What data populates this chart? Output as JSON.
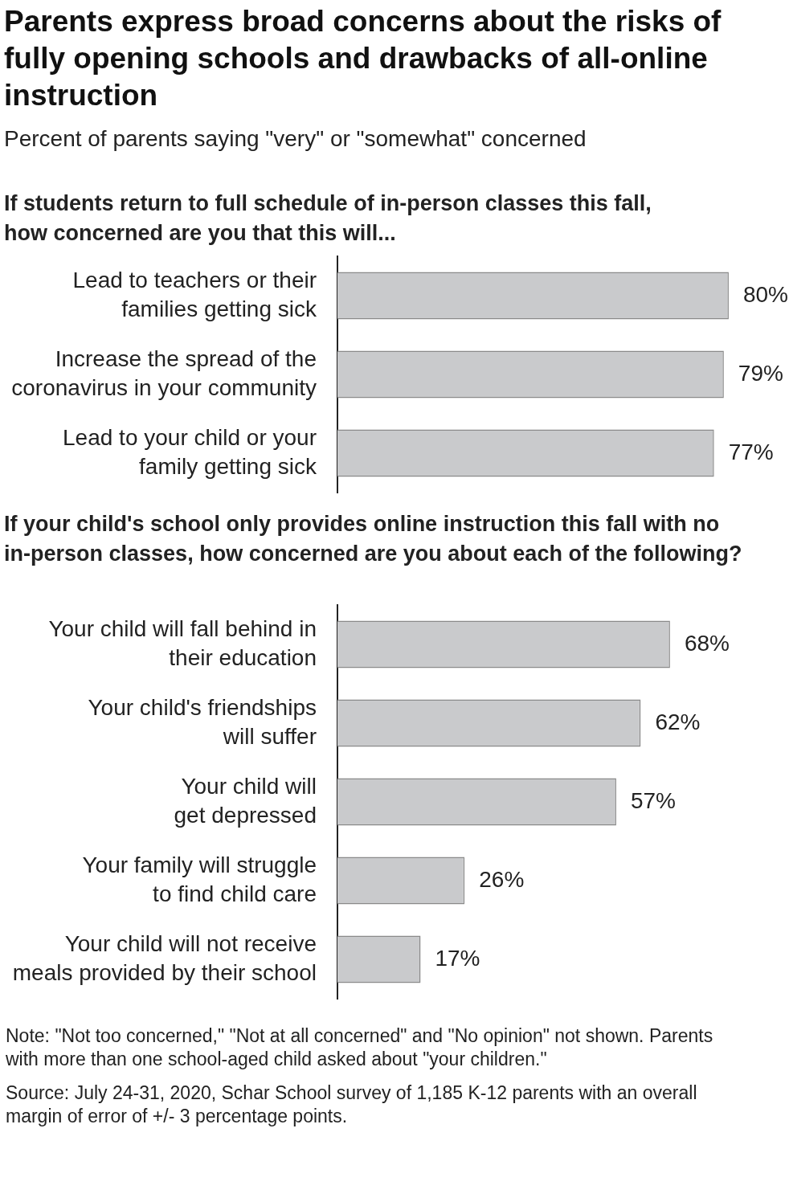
{
  "chart_data": [
    {
      "type": "other",
      "title": "Parents express broad concerns about the risks of fully opening schools and drawbacks of all-online instruction",
      "subtitle": "Percent of parents saying \"very\" or \"somewhat\" concerned"
    },
    {
      "type": "bar",
      "orientation": "horizontal",
      "title": "If students return to full schedule of in-person classes this fall, how concerned are you that this will...",
      "categories": [
        "Lead to teachers or their\nfamilies getting sick",
        "Increase the spread of the\ncoronavirus in your community",
        "Lead to your child or your\nfamily getting sick"
      ],
      "values": [
        80,
        79,
        77
      ],
      "value_labels": [
        "80%",
        "79%",
        "77%"
      ],
      "color": "#c9cacc",
      "tick_labels": "y"
    },
    {
      "type": "bar",
      "orientation": "horizontal",
      "title": "If your child's school only provides online instruction this fall with no in-person classes, how concerned are you about each of the following?",
      "categories": [
        "Your child will fall behind in\ntheir education",
        "Your child's friendships\nwill suffer",
        "Your child will\nget depressed",
        "Your family will struggle\nto find child care",
        "Your child will not receive\nmeals provided by their school"
      ],
      "values": [
        68,
        62,
        57,
        26,
        17
      ],
      "value_labels": [
        "68%",
        "62%",
        "57%",
        "26%",
        "17%"
      ],
      "color": "#c9cacc",
      "tick_labels": "y",
      "annotations": [
        "Note: \"Not too concerned,\" \"Not at all concerned\" and \"No opinion\" not shown. Parents with more than one school-aged child asked about \"your children.\"",
        "Source: July 24-31, 2020, Schar School survey of 1,185 K-12 parents with an overall margin of error of +/- 3 percentage points."
      ]
    }
  ]
}
